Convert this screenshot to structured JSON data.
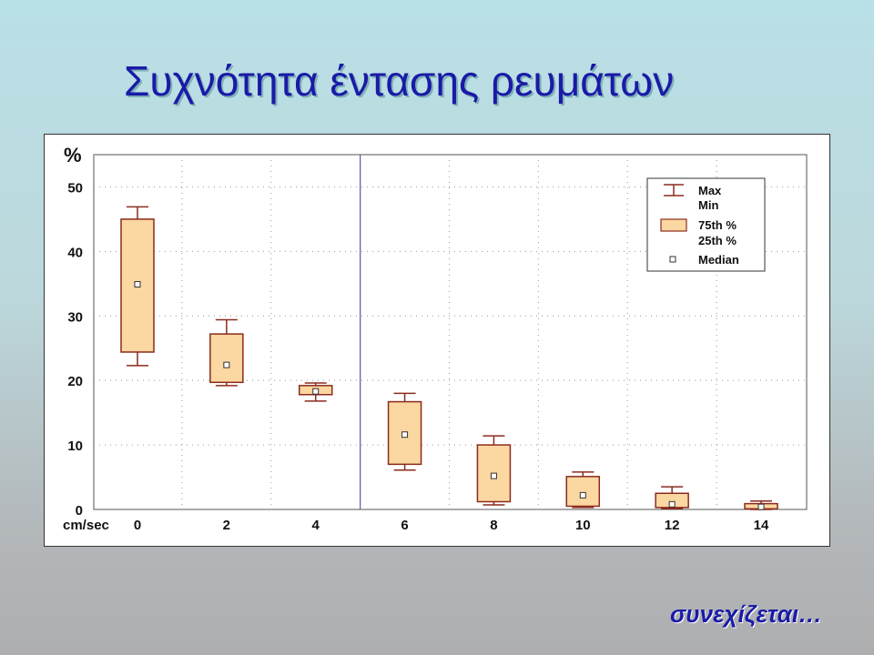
{
  "slide": {
    "title": "Συχνότητα έντασης ρευμάτων",
    "footer": "συνεχίζεται…"
  },
  "colors": {
    "title": "#1a1aa8",
    "box_fill": "#fbd7a1",
    "box_stroke": "#8b2b1d",
    "whisker": "#8b2b1d",
    "divider": "#5a5aa8"
  },
  "chart_data": {
    "type": "box",
    "ylabel": "%",
    "xlabel": "cm/sec",
    "categories": [
      "0",
      "2",
      "4",
      "6",
      "8",
      "10",
      "12",
      "14"
    ],
    "ylim": [
      0,
      55
    ],
    "yticks": [
      0,
      10,
      20,
      30,
      40,
      50
    ],
    "grid": true,
    "divider_after_category": "4",
    "boxes": [
      {
        "x": "0",
        "min": 22.3,
        "q1": 24.4,
        "median": 34.9,
        "q3": 45.0,
        "max": 46.9
      },
      {
        "x": "2",
        "min": 19.2,
        "q1": 19.7,
        "median": 22.4,
        "q3": 27.2,
        "max": 29.4
      },
      {
        "x": "4",
        "min": 16.8,
        "q1": 17.8,
        "median": 18.3,
        "q3": 19.2,
        "max": 19.6
      },
      {
        "x": "6",
        "min": 6.1,
        "q1": 7.0,
        "median": 11.6,
        "q3": 16.7,
        "max": 18.0
      },
      {
        "x": "8",
        "min": 0.7,
        "q1": 1.2,
        "median": 5.2,
        "q3": 10.0,
        "max": 11.4
      },
      {
        "x": "10",
        "min": 0.3,
        "q1": 0.5,
        "median": 2.2,
        "q3": 5.1,
        "max": 5.8
      },
      {
        "x": "12",
        "min": 0.1,
        "q1": 0.3,
        "median": 0.8,
        "q3": 2.5,
        "max": 3.5
      },
      {
        "x": "14",
        "min": 0.0,
        "q1": 0.1,
        "median": 0.4,
        "q3": 0.9,
        "max": 1.3
      }
    ],
    "legend": {
      "position": "top-right",
      "max_label": "Max",
      "min_label": "Min",
      "q3_label": "75th %",
      "q1_label": "25th %",
      "median_label": "Median"
    }
  }
}
